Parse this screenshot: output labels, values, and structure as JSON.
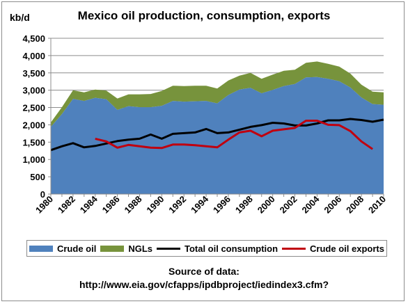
{
  "title": "Mexico oil production, consumption, exports",
  "unit_label": "kb/d",
  "source_line1": "Source of data:",
  "source_line2": "http://www.eia.gov/cfapps/ipdbproject/iedindex3.cfm?",
  "colors": {
    "crude": "#4f81bd",
    "ngl": "#77933c",
    "consumption": "#000000",
    "exports": "#c0000f",
    "grid": "#8c8c8c"
  },
  "chart_data": {
    "type": "area",
    "years": [
      1980,
      1981,
      1982,
      1983,
      1984,
      1985,
      1986,
      1987,
      1988,
      1989,
      1990,
      1991,
      1992,
      1993,
      1994,
      1995,
      1996,
      1997,
      1998,
      1999,
      2000,
      2001,
      2002,
      2003,
      2004,
      2005,
      2006,
      2007,
      2008,
      2009,
      2010
    ],
    "x_tick_labels": [
      "1980",
      "1982",
      "1984",
      "1986",
      "1988",
      "1990",
      "1992",
      "1994",
      "1996",
      "1998",
      "2000",
      "2002",
      "2004",
      "2006",
      "2008",
      "2010"
    ],
    "y_tick_labels": [
      "0",
      "500",
      "1,000",
      "1,500",
      "2,000",
      "2,500",
      "3,000",
      "3,500",
      "4,000",
      "4,500"
    ],
    "ylim": [
      0,
      4500
    ],
    "legend_placement": "bottom",
    "series": [
      {
        "name": "Crude oil",
        "kind": "stacked-area",
        "values": [
          1940,
          2310,
          2750,
          2690,
          2780,
          2740,
          2430,
          2540,
          2510,
          2510,
          2550,
          2690,
          2670,
          2680,
          2690,
          2620,
          2860,
          3020,
          3070,
          2910,
          3010,
          3120,
          3180,
          3370,
          3380,
          3330,
          3260,
          3080,
          2790,
          2600,
          2580
        ]
      },
      {
        "name": "NGLs",
        "kind": "stacked-area",
        "values": [
          130,
          200,
          250,
          250,
          240,
          250,
          330,
          340,
          370,
          380,
          430,
          440,
          450,
          450,
          440,
          430,
          420,
          400,
          430,
          420,
          440,
          440,
          410,
          420,
          450,
          430,
          420,
          400,
          370,
          360,
          360
        ]
      },
      {
        "name": "Total oil consumption",
        "kind": "line",
        "values": [
          1270,
          1380,
          1470,
          1350,
          1390,
          1460,
          1530,
          1570,
          1600,
          1720,
          1600,
          1740,
          1760,
          1780,
          1880,
          1760,
          1780,
          1860,
          1940,
          1990,
          2060,
          2040,
          1980,
          1980,
          2040,
          2130,
          2130,
          2170,
          2140,
          2090,
          2150
        ]
      },
      {
        "name": "Crude oil exports",
        "kind": "line",
        "start_year": 1984,
        "values": [
          1600,
          1520,
          1340,
          1420,
          1380,
          1340,
          1330,
          1430,
          1430,
          1410,
          1380,
          1350,
          1570,
          1780,
          1830,
          1670,
          1830,
          1870,
          1910,
          2120,
          2120,
          2000,
          1990,
          1820,
          1520,
          1300
        ]
      }
    ]
  }
}
